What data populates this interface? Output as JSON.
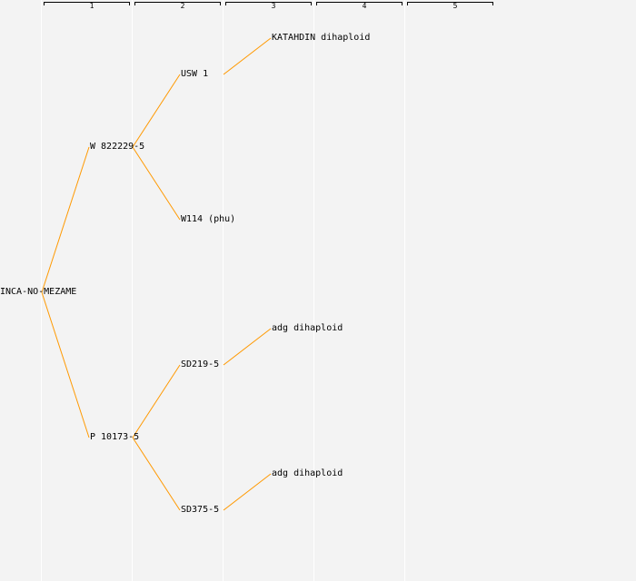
{
  "generations": [
    "1",
    "2",
    "3",
    "4",
    "5"
  ],
  "nodes": {
    "root": "INCA-NO-MEZAME",
    "p_father": "W 822229-5",
    "p_mother": "P 10173-5",
    "pp_father": "USW 1",
    "pp_mother": "W114 (phu)",
    "mp_father": "SD219-5",
    "mp_mother": "SD375-5",
    "ppp_father": "KATAHDIN dihaploid",
    "mpp_father": "adg dihaploid",
    "mmp_father": "adg dihaploid"
  },
  "colors": {
    "link": "#ff9900",
    "background": "#f3f3f3",
    "column_divider": "#ffffff",
    "bracket": "#000000"
  }
}
